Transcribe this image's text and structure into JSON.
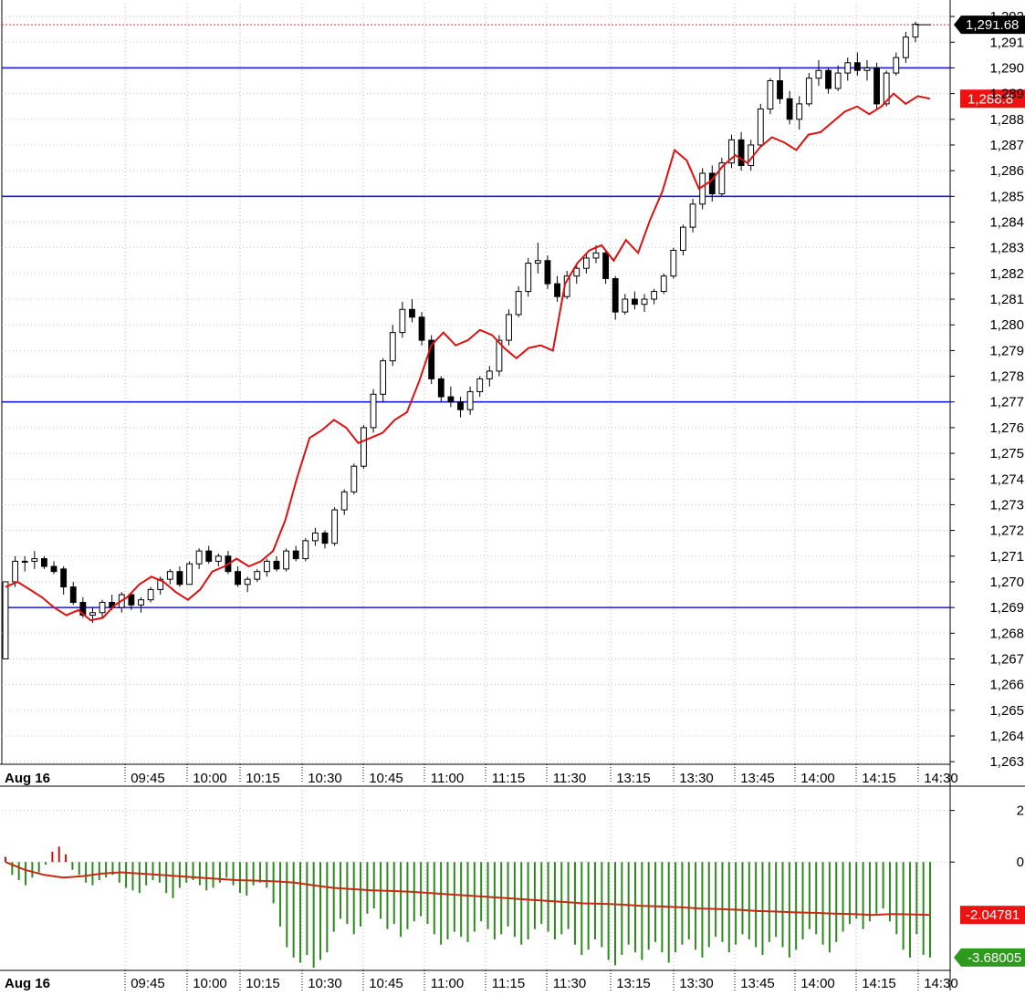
{
  "chart_data": [
    {
      "type": "candlestick",
      "title": "",
      "x_ticks": [
        "Aug 16",
        "09:45",
        "10:00",
        "10:15",
        "10:30",
        "10:45",
        "11:00",
        "11:15",
        "11:30",
        "13:15",
        "13:30",
        "13:45",
        "14:00",
        "14:15",
        "14:30"
      ],
      "y_ticks": [
        "1,263",
        "1,264",
        "1,265",
        "1,266",
        "1,267",
        "1,268",
        "1,269",
        "1,270",
        "1,271",
        "1,272",
        "1,273",
        "1,274",
        "1,275",
        "1,276",
        "1,277",
        "1,278",
        "1,279",
        "1,280",
        "1,281",
        "1,282",
        "1,283",
        "1,284",
        "1,285",
        "1,286",
        "1,287",
        "1,288",
        "1,289",
        "1,290",
        "1,291",
        "1,292"
      ],
      "ylim": [
        1262.9,
        1292.5
      ],
      "horizontal_levels": [
        1290,
        1285,
        1277,
        1269
      ],
      "last_price": 1291.68,
      "last_price_label": "1,291.68",
      "secondary_line_last_label": "1,288.8",
      "candles_ohlc": [
        [
          1267.0,
          1270.0,
          1267.0,
          1270.0
        ],
        [
          1270.0,
          1271.0,
          1269.8,
          1270.8
        ],
        [
          1270.8,
          1271.0,
          1270.4,
          1270.8
        ],
        [
          1270.8,
          1271.2,
          1270.5,
          1270.9
        ],
        [
          1270.9,
          1271.0,
          1270.5,
          1270.6
        ],
        [
          1270.6,
          1270.8,
          1270.3,
          1270.4
        ],
        [
          1270.5,
          1270.6,
          1269.5,
          1269.8
        ],
        [
          1269.8,
          1270.0,
          1269.1,
          1269.2
        ],
        [
          1269.2,
          1269.4,
          1268.6,
          1268.7
        ],
        [
          1268.7,
          1269.0,
          1268.4,
          1268.8
        ],
        [
          1268.8,
          1269.3,
          1268.6,
          1269.2
        ],
        [
          1269.2,
          1269.5,
          1268.9,
          1269.0
        ],
        [
          1269.0,
          1269.6,
          1268.8,
          1269.5
        ],
        [
          1269.5,
          1269.6,
          1268.9,
          1269.1
        ],
        [
          1269.1,
          1269.4,
          1268.8,
          1269.3
        ],
        [
          1269.3,
          1269.8,
          1269.2,
          1269.7
        ],
        [
          1269.7,
          1270.2,
          1269.5,
          1270.1
        ],
        [
          1270.1,
          1270.5,
          1269.9,
          1270.4
        ],
        [
          1270.4,
          1270.6,
          1269.8,
          1269.9
        ],
        [
          1269.9,
          1270.8,
          1269.9,
          1270.7
        ],
        [
          1270.7,
          1271.3,
          1270.5,
          1271.2
        ],
        [
          1271.2,
          1271.4,
          1270.7,
          1270.8
        ],
        [
          1270.8,
          1271.1,
          1270.6,
          1271.0
        ],
        [
          1271.0,
          1271.2,
          1270.3,
          1270.4
        ],
        [
          1270.4,
          1270.6,
          1269.8,
          1269.9
        ],
        [
          1269.9,
          1270.2,
          1269.6,
          1270.1
        ],
        [
          1270.1,
          1270.5,
          1270.0,
          1270.4
        ],
        [
          1270.4,
          1270.9,
          1270.2,
          1270.8
        ],
        [
          1270.8,
          1271.0,
          1270.4,
          1270.5
        ],
        [
          1270.5,
          1271.3,
          1270.4,
          1271.2
        ],
        [
          1271.2,
          1271.4,
          1270.8,
          1270.9
        ],
        [
          1270.9,
          1271.7,
          1270.8,
          1271.6
        ],
        [
          1271.6,
          1272.1,
          1271.4,
          1271.9
        ],
        [
          1271.9,
          1272.0,
          1271.3,
          1271.5
        ],
        [
          1271.5,
          1272.9,
          1271.4,
          1272.8
        ],
        [
          1272.8,
          1273.6,
          1272.6,
          1273.5
        ],
        [
          1273.5,
          1274.6,
          1273.4,
          1274.5
        ],
        [
          1274.5,
          1276.1,
          1274.4,
          1276.0
        ],
        [
          1276.0,
          1277.5,
          1275.8,
          1277.3
        ],
        [
          1277.3,
          1278.7,
          1277.0,
          1278.6
        ],
        [
          1278.6,
          1280.0,
          1278.4,
          1279.7
        ],
        [
          1279.7,
          1280.9,
          1279.5,
          1280.6
        ],
        [
          1280.6,
          1281.0,
          1280.1,
          1280.3
        ],
        [
          1280.3,
          1280.5,
          1279.2,
          1279.4
        ],
        [
          1279.4,
          1279.6,
          1277.7,
          1277.9
        ],
        [
          1277.9,
          1278.0,
          1277.0,
          1277.2
        ],
        [
          1277.2,
          1277.6,
          1276.8,
          1277.0
        ],
        [
          1277.0,
          1277.2,
          1276.4,
          1276.7
        ],
        [
          1276.7,
          1277.6,
          1276.5,
          1277.4
        ],
        [
          1277.4,
          1278.0,
          1277.2,
          1277.9
        ],
        [
          1277.9,
          1278.4,
          1277.6,
          1278.2
        ],
        [
          1278.2,
          1279.6,
          1278.0,
          1279.4
        ],
        [
          1279.4,
          1280.6,
          1279.2,
          1280.4
        ],
        [
          1280.4,
          1281.5,
          1280.3,
          1281.3
        ],
        [
          1281.3,
          1282.6,
          1281.1,
          1282.4
        ],
        [
          1282.4,
          1283.2,
          1282.0,
          1282.5
        ],
        [
          1282.5,
          1282.7,
          1281.4,
          1281.6
        ],
        [
          1281.6,
          1281.9,
          1280.9,
          1281.1
        ],
        [
          1281.1,
          1282.1,
          1281.0,
          1281.9
        ],
        [
          1281.9,
          1282.4,
          1281.6,
          1282.2
        ],
        [
          1282.2,
          1282.8,
          1282.0,
          1282.6
        ],
        [
          1282.6,
          1283.1,
          1282.4,
          1282.8
        ],
        [
          1282.8,
          1282.9,
          1281.6,
          1281.8
        ],
        [
          1281.8,
          1281.9,
          1280.2,
          1280.5
        ],
        [
          1280.5,
          1281.2,
          1280.4,
          1281.0
        ],
        [
          1281.0,
          1281.3,
          1280.6,
          1280.8
        ],
        [
          1280.8,
          1281.2,
          1280.5,
          1281.0
        ],
        [
          1281.0,
          1281.4,
          1280.8,
          1281.3
        ],
        [
          1281.3,
          1282.0,
          1281.2,
          1281.9
        ],
        [
          1281.9,
          1283.0,
          1281.8,
          1282.9
        ],
        [
          1282.9,
          1283.9,
          1282.7,
          1283.8
        ],
        [
          1283.8,
          1284.9,
          1283.6,
          1284.7
        ],
        [
          1284.7,
          1286.1,
          1284.5,
          1285.9
        ],
        [
          1285.9,
          1286.2,
          1284.8,
          1285.1
        ],
        [
          1285.1,
          1286.5,
          1285.0,
          1286.3
        ],
        [
          1286.3,
          1287.4,
          1286.1,
          1287.2
        ],
        [
          1287.2,
          1287.5,
          1286.0,
          1286.2
        ],
        [
          1286.2,
          1287.2,
          1286.0,
          1287.0
        ],
        [
          1287.0,
          1288.6,
          1286.9,
          1288.4
        ],
        [
          1288.4,
          1289.6,
          1288.2,
          1289.5
        ],
        [
          1289.5,
          1290.0,
          1288.6,
          1288.8
        ],
        [
          1288.8,
          1289.1,
          1287.8,
          1288.0
        ],
        [
          1288.0,
          1288.9,
          1287.6,
          1288.6
        ],
        [
          1288.6,
          1289.8,
          1288.5,
          1289.6
        ],
        [
          1289.6,
          1290.3,
          1289.3,
          1289.9
        ],
        [
          1289.9,
          1290.0,
          1289.0,
          1289.2
        ],
        [
          1289.2,
          1290.1,
          1289.1,
          1289.8
        ],
        [
          1289.8,
          1290.4,
          1289.5,
          1290.2
        ],
        [
          1290.2,
          1290.6,
          1289.7,
          1289.9
        ],
        [
          1289.9,
          1290.3,
          1289.5,
          1290.0
        ],
        [
          1290.0,
          1290.2,
          1288.4,
          1288.6
        ],
        [
          1288.6,
          1289.9,
          1288.5,
          1289.8
        ],
        [
          1289.8,
          1290.6,
          1289.7,
          1290.4
        ],
        [
          1290.4,
          1291.4,
          1290.2,
          1291.2
        ],
        [
          1291.2,
          1291.8,
          1291.0,
          1291.7
        ]
      ],
      "secondary_line": {
        "color": "#dd1111",
        "values": [
          1269.8,
          1270.0,
          1269.7,
          1269.4,
          1269.0,
          1268.7,
          1268.9,
          1268.5,
          1268.6,
          1269.1,
          1269.4,
          1269.9,
          1270.2,
          1270.0,
          1269.6,
          1269.3,
          1269.7,
          1270.4,
          1270.6,
          1270.9,
          1270.6,
          1270.8,
          1271.2,
          1272.4,
          1274.1,
          1275.6,
          1275.9,
          1276.3,
          1276.0,
          1275.4,
          1275.6,
          1275.8,
          1276.3,
          1276.6,
          1277.8,
          1279.2,
          1279.7,
          1279.2,
          1279.4,
          1279.8,
          1279.6,
          1279.1,
          1278.7,
          1279.1,
          1279.2,
          1279.0,
          1281.6,
          1282.4,
          1282.9,
          1283.1,
          1282.5,
          1283.3,
          1282.8,
          1284.1,
          1285.2,
          1286.8,
          1286.4,
          1285.3,
          1285.6,
          1286.2,
          1286.6,
          1286.3,
          1286.9,
          1287.3,
          1287.1,
          1286.8,
          1287.4,
          1287.5,
          1287.9,
          1288.3,
          1288.5,
          1288.2,
          1288.5,
          1289.0,
          1288.6,
          1288.9,
          1288.8
        ]
      }
    },
    {
      "type": "bar",
      "title": "",
      "x_ticks": [
        "Aug 16",
        "09:45",
        "10:00",
        "10:15",
        "10:30",
        "10:45",
        "11:00",
        "11:15",
        "11:30",
        "13:15",
        "13:30",
        "13:45",
        "14:00",
        "14:15",
        "14:30"
      ],
      "y_ticks": [
        "2",
        "0"
      ],
      "ylim": [
        -4.2,
        2.8
      ],
      "histogram_positive_color": "#cc1111",
      "histogram_negative_color": "#2d8a1e",
      "signal_line_color": "#c62a12",
      "signal_last_label": "-2.04781",
      "histogram_last_label": "-3.68005",
      "histogram_values": [
        0.2,
        -0.5,
        -0.7,
        -0.9,
        -0.6,
        -0.4,
        -0.1,
        0.4,
        0.6,
        0.3,
        -0.3,
        -0.5,
        -0.8,
        -0.9,
        -0.7,
        -0.6,
        -0.5,
        -0.8,
        -1.0,
        -1.1,
        -1.2,
        -0.9,
        -0.7,
        -0.8,
        -1.2,
        -1.4,
        -1.0,
        -0.8,
        -0.7,
        -0.9,
        -1.1,
        -1.0,
        -0.8,
        -0.6,
        -0.9,
        -1.2,
        -1.3,
        -0.9,
        -0.8,
        -1.0,
        -1.6,
        -2.5,
        -3.3,
        -3.7,
        -3.9,
        -3.6,
        -4.1,
        -3.8,
        -3.5,
        -2.7,
        -2.2,
        -2.4,
        -2.8,
        -2.5,
        -2.0,
        -1.8,
        -2.2,
        -2.6,
        -2.4,
        -2.9,
        -2.6,
        -2.3,
        -2.1,
        -2.4,
        -2.8,
        -3.2,
        -3.0,
        -2.7,
        -2.9,
        -3.1,
        -2.7,
        -2.3,
        -2.6,
        -3.0,
        -2.8,
        -2.5,
        -2.9,
        -3.2,
        -3.0,
        -2.6,
        -2.4,
        -2.7,
        -3.0,
        -2.8,
        -2.6,
        -3.2,
        -3.6,
        -3.4,
        -3.0,
        -3.3,
        -3.8,
        -4.0,
        -3.6,
        -3.2,
        -3.5,
        -3.8,
        -3.4,
        -3.1,
        -3.5,
        -3.9,
        -3.5,
        -3.2,
        -3.0,
        -3.4,
        -3.7,
        -3.3,
        -2.9,
        -3.1,
        -3.5,
        -3.2,
        -2.8,
        -3.0,
        -3.3,
        -3.6,
        -3.1,
        -2.9,
        -3.3,
        -3.7,
        -3.4,
        -3.0,
        -2.6,
        -2.8,
        -3.2,
        -3.5,
        -3.1,
        -2.7,
        -2.4,
        -2.2,
        -2.6,
        -2.3,
        -2.0,
        -1.8,
        -2.3,
        -2.8,
        -3.4,
        -3.7,
        -2.8,
        -3.6,
        -3.7
      ],
      "signal_values": [
        0.0,
        -0.3,
        -0.5,
        -0.6,
        -0.55,
        -0.45,
        -0.4,
        -0.45,
        -0.5,
        -0.55,
        -0.6,
        -0.65,
        -0.7,
        -0.72,
        -0.75,
        -0.8,
        -0.9,
        -1.0,
        -1.05,
        -1.1,
        -1.12,
        -1.15,
        -1.2,
        -1.25,
        -1.3,
        -1.35,
        -1.4,
        -1.45,
        -1.5,
        -1.55,
        -1.6,
        -1.62,
        -1.65,
        -1.7,
        -1.72,
        -1.75,
        -1.8,
        -1.82,
        -1.85,
        -1.9,
        -1.92,
        -1.95,
        -1.97,
        -2.0,
        -2.02,
        -2.05,
        -2.02,
        -2.03,
        -2.05
      ]
    }
  ]
}
